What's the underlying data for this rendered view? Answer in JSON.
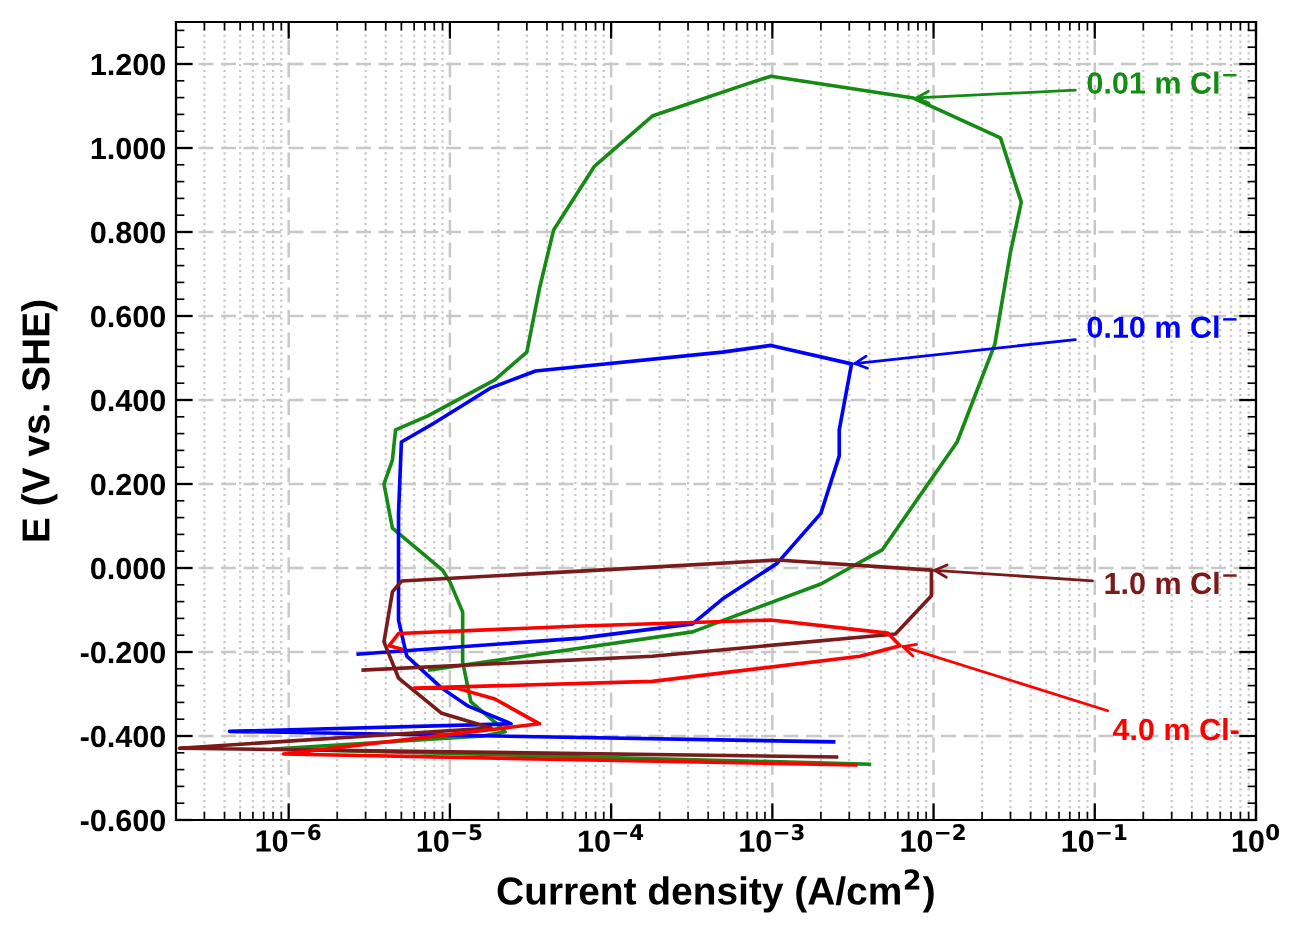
{
  "chart_data": {
    "type": "line",
    "xlabel": "Current density (A/cm$^{2}$)",
    "ylabel": "E (V vs. SHE)",
    "log": "x",
    "grid": true,
    "line_style": "solid",
    "marker": "none",
    "xlim": [
      2e-07,
      1
    ],
    "ylim": [
      -0.6,
      1.3
    ],
    "xticks": [
      {
        "value": 1e-06,
        "label": "10$^{−6}$"
      },
      {
        "value": 1e-05,
        "label": "10$^{−5}$"
      },
      {
        "value": 0.0001,
        "label": "10$^{−4}$"
      },
      {
        "value": 0.001,
        "label": "10$^{−3}$"
      },
      {
        "value": 0.01,
        "label": "10$^{−2}$"
      },
      {
        "value": 0.1,
        "label": "10$^{−1}$"
      },
      {
        "value": 1,
        "label": "10$^{0}$"
      }
    ],
    "yticks": [
      {
        "value": -0.6,
        "label": "-0.600"
      },
      {
        "value": -0.4,
        "label": "-0.400"
      },
      {
        "value": -0.2,
        "label": "-0.200"
      },
      {
        "value": 0,
        "label": "0.000"
      },
      {
        "value": 0.2,
        "label": "0.200"
      },
      {
        "value": 0.4,
        "label": "0.400"
      },
      {
        "value": 0.6,
        "label": "0.600"
      },
      {
        "value": 0.8,
        "label": "0.800"
      },
      {
        "value": 1.0,
        "label": "1.000"
      },
      {
        "value": 1.2,
        "label": "1.200"
      }
    ],
    "series": [
      {
        "color": "#158a15",
        "x": [
          0.004,
          8e-07,
          1.6e-05,
          2.2e-05,
          1.9e-05,
          1.35e-05,
          1.2e-05,
          1.2e-05,
          1e-05,
          9e-06,
          4.4e-06,
          3.9e-06,
          4.4e-06,
          4.6e-06,
          7.3e-06,
          1.9e-05,
          3e-05,
          3.6e-05,
          4.4e-05,
          7.9e-05,
          0.00018,
          0.00064,
          0.00098,
          0.0075,
          0.026,
          0.035,
          0.03,
          0.024,
          0.014,
          0.0048,
          0.002,
          0.00032,
          4.4e-05,
          7.5e-06
        ],
        "values": [
          -0.467,
          -0.431,
          -0.4,
          -0.39,
          -0.367,
          -0.319,
          -0.224,
          -0.105,
          -0.033,
          -0.005,
          0.095,
          0.2,
          0.257,
          0.329,
          0.362,
          0.448,
          0.514,
          0.667,
          0.805,
          0.957,
          1.076,
          1.148,
          1.171,
          1.119,
          1.024,
          0.871,
          0.752,
          0.533,
          0.3,
          0.043,
          -0.038,
          -0.152,
          -0.2,
          -0.243
        ]
      },
      {
        "color": "#0000ff",
        "x": [
          0.0024,
          4.3e-07,
          2.4e-05,
          1.3e-05,
          8.9e-06,
          5.4e-06,
          4.8e-06,
          4.8e-06,
          5e-06,
          7.9e-06,
          1.8e-05,
          3.4e-05,
          0.00049,
          0.00098,
          0.0031,
          0.0026,
          0.0026,
          0.002,
          0.00107,
          0.00049,
          0.00032,
          6.5e-05,
          2.7e-06
        ],
        "values": [
          -0.414,
          -0.389,
          -0.371,
          -0.329,
          -0.286,
          -0.21,
          -0.124,
          0.13,
          0.3,
          0.344,
          0.429,
          0.469,
          0.514,
          0.53,
          0.486,
          0.329,
          0.267,
          0.13,
          0.011,
          -0.074,
          -0.133,
          -0.167,
          -0.205
        ]
      },
      {
        "color": "#7a1a1a",
        "x": [
          0.0025,
          2.1e-07,
          1.8e-05,
          8.9e-06,
          4.8e-06,
          3.9e-06,
          4.4e-06,
          5e-06,
          0.00018,
          0.00107,
          0.0097,
          0.0097,
          0.0058,
          0.00018,
          2.9e-06
        ],
        "values": [
          -0.45,
          -0.429,
          -0.381,
          -0.346,
          -0.262,
          -0.176,
          -0.057,
          -0.031,
          0.002,
          0.019,
          -0.005,
          -0.066,
          -0.157,
          -0.21,
          -0.243
        ]
      },
      {
        "color": "#ff0000",
        "x": [
          0.0033,
          9.3e-07,
          3.6e-05,
          1.9e-05,
          1.1e-05,
          6e-06,
          0.00018,
          0.0035,
          0.0062,
          0.0052,
          0.00098,
          6.5e-05,
          4.8e-06,
          4.2e-06,
          5e-06
        ],
        "values": [
          -0.469,
          -0.443,
          -0.371,
          -0.312,
          -0.286,
          -0.286,
          -0.27,
          -0.21,
          -0.185,
          -0.155,
          -0.124,
          -0.138,
          -0.156,
          -0.185,
          -0.193
        ]
      }
    ],
    "annotations": [
      {
        "text": "0.01 m Cl$^{−}$",
        "x": 0.0075,
        "y": 1.119
      },
      {
        "text": "0.10 m Cl$^{−}$",
        "x": 0.0031,
        "y": 0.486
      },
      {
        "text": "1.0 m Cl$^{−}$",
        "x": 0.0097,
        "y": -0.005
      },
      {
        "text": "4.0 m Cl-",
        "x": 0.0062,
        "y": -0.185
      }
    ]
  }
}
